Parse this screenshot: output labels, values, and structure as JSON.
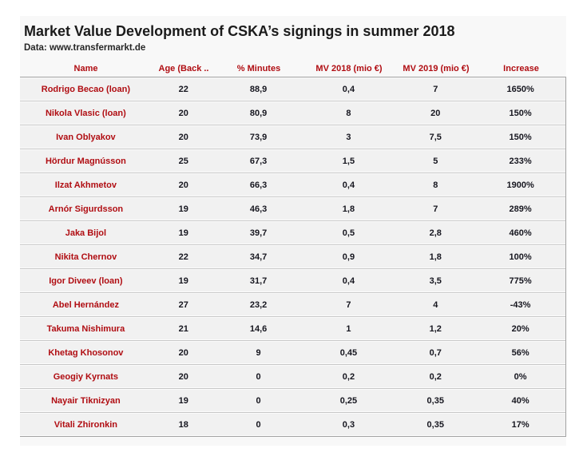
{
  "title": "Market Value Development of CSKA’s signings in summer 2018",
  "subtitle": "Data: www.transfermarkt.de",
  "colors": {
    "accent_red": "#b00d12",
    "number_text": "#16161f",
    "row_background": "#f1f1f1",
    "row_separator": "#c7c7c7",
    "table_border": "#a3a3a3",
    "card_background": "#f8f8f8",
    "title_text": "#1b1b1b"
  },
  "chart_data": {
    "type": "table",
    "title": "Market Value Development of CSKA’s signings in summer 2018",
    "subtitle": "Data: www.transfermarkt.de",
    "columns": [
      "Name",
      "Age (Back ..",
      "% Minutes",
      "MV 2018 (mio €)",
      "MV 2019 (mio €)",
      "Increase"
    ],
    "column_keys": [
      "name",
      "age",
      "minutes",
      "mv2018",
      "mv2019",
      "increase"
    ],
    "rows": [
      [
        "Rodrigo Becao (loan)",
        "22",
        "88,9",
        "0,4",
        "7",
        "1650%"
      ],
      [
        "Nikola Vlasic (loan)",
        "20",
        "80,9",
        "8",
        "20",
        "150%"
      ],
      [
        "Ivan Oblyakov",
        "20",
        "73,9",
        "3",
        "7,5",
        "150%"
      ],
      [
        "Hördur Magnússon",
        "25",
        "67,3",
        "1,5",
        "5",
        "233%"
      ],
      [
        "Ilzat Akhmetov",
        "20",
        "66,3",
        "0,4",
        "8",
        "1900%"
      ],
      [
        "Arnór Sigurdsson",
        "19",
        "46,3",
        "1,8",
        "7",
        "289%"
      ],
      [
        "Jaka Bijol",
        "19",
        "39,7",
        "0,5",
        "2,8",
        "460%"
      ],
      [
        "Nikita Chernov",
        "22",
        "34,7",
        "0,9",
        "1,8",
        "100%"
      ],
      [
        "Igor Diveev (loan)",
        "19",
        "31,7",
        "0,4",
        "3,5",
        "775%"
      ],
      [
        "Abel Hernández",
        "27",
        "23,2",
        "7",
        "4",
        "-43%"
      ],
      [
        "Takuma Nishimura",
        "21",
        "14,6",
        "1",
        "1,2",
        "20%"
      ],
      [
        "Khetag Khosonov",
        "20",
        "9",
        "0,45",
        "0,7",
        "56%"
      ],
      [
        "Geogiy Kyrnats",
        "20",
        "0",
        "0,2",
        "0,2",
        "0%"
      ],
      [
        "Nayair Tiknizyan",
        "19",
        "0",
        "0,25",
        "0,35",
        "40%"
      ],
      [
        "Vitali Zhironkin",
        "18",
        "0",
        "0,3",
        "0,35",
        "17%"
      ]
    ]
  }
}
